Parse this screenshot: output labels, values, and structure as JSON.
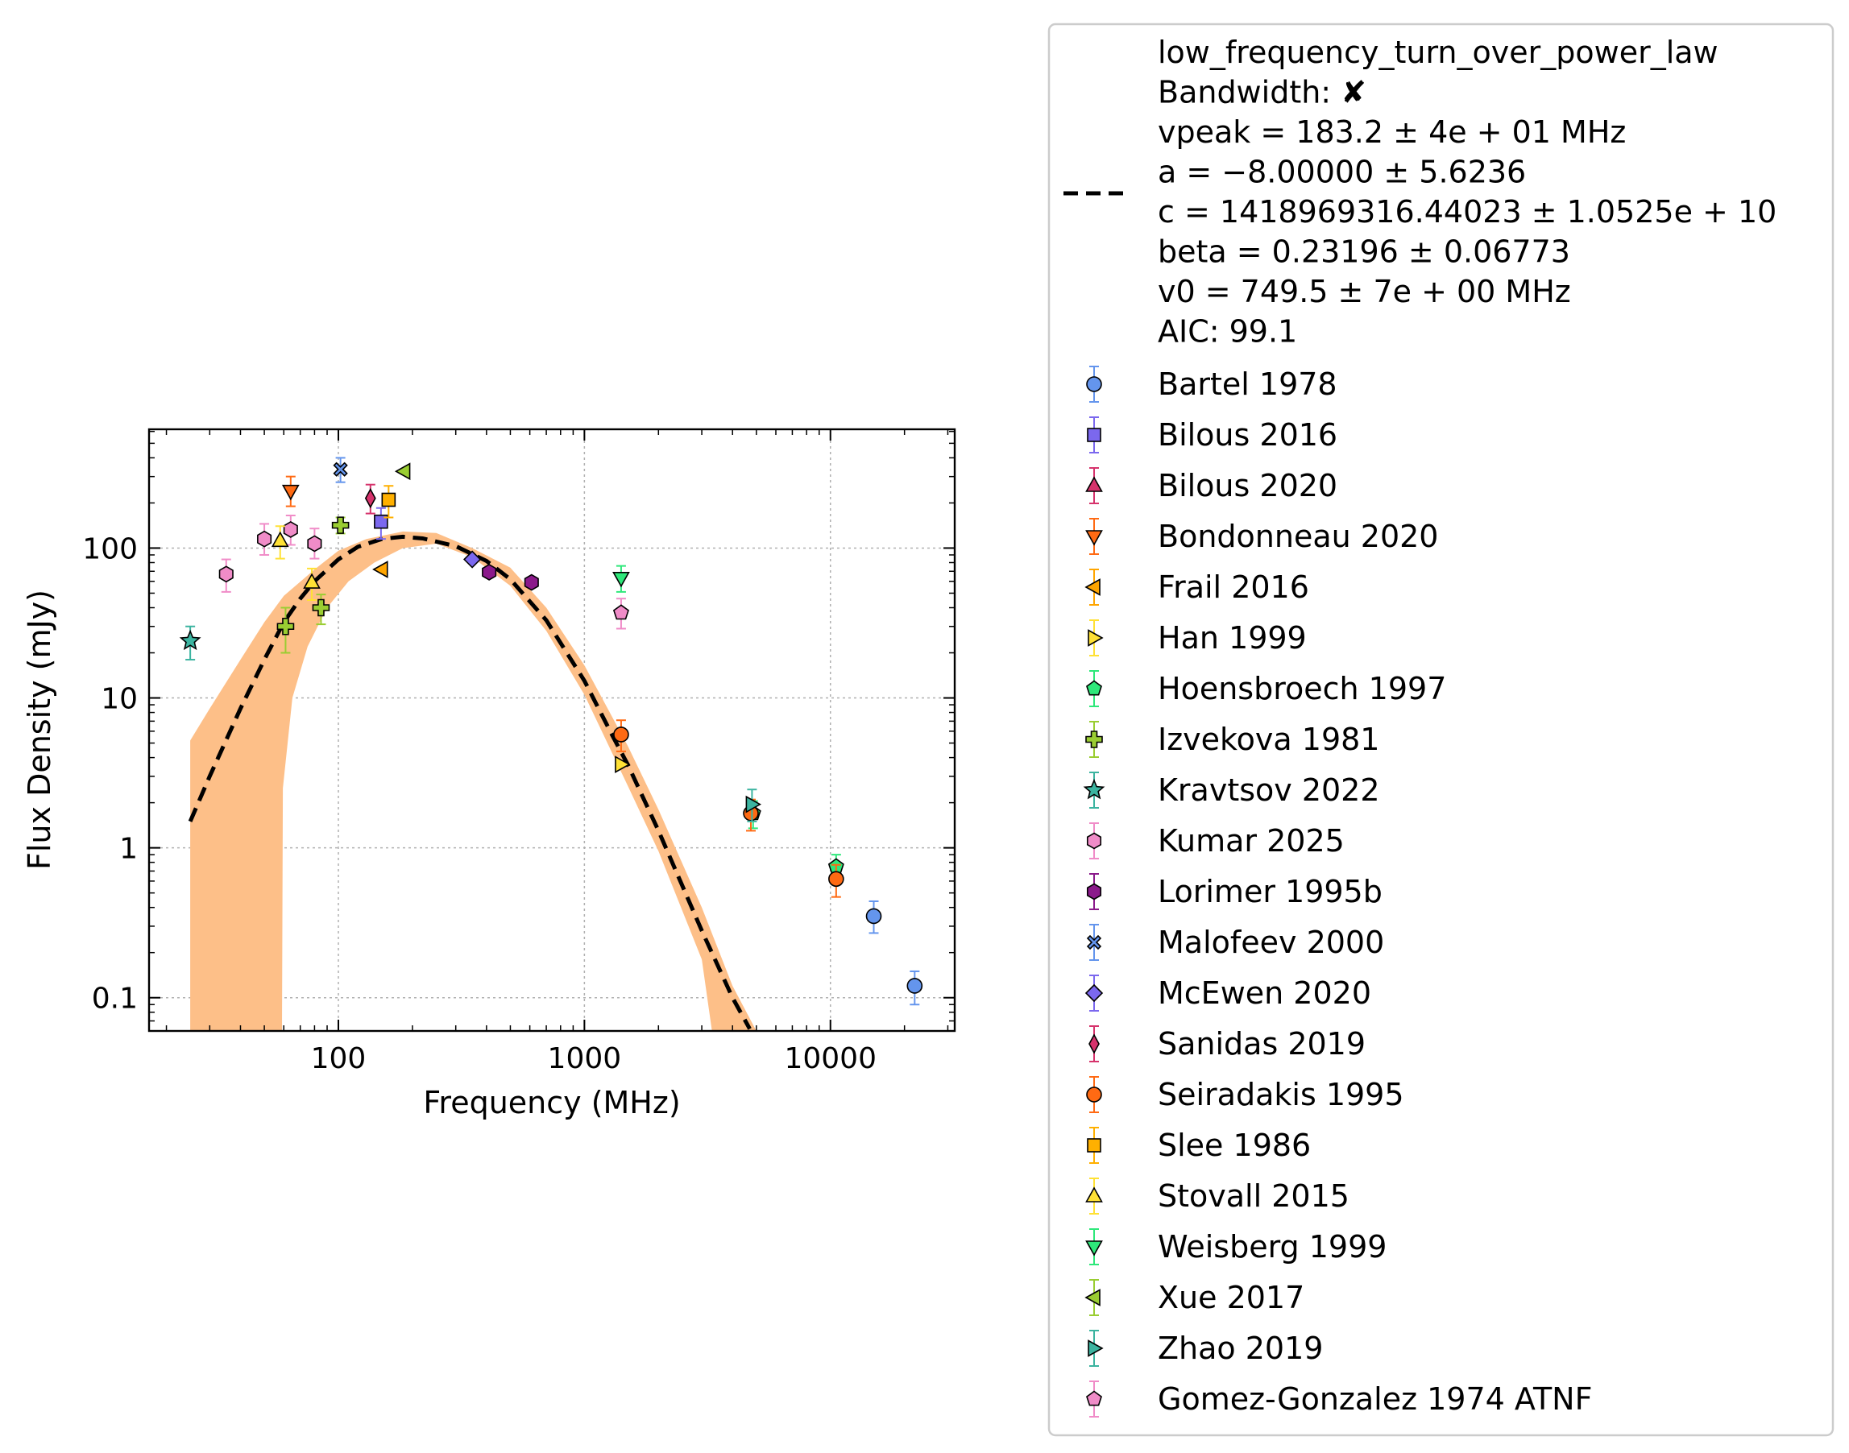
{
  "chart_data": {
    "type": "scatter",
    "title": "",
    "xlabel": "Frequency (MHz)",
    "ylabel": "Flux Density (mJy)",
    "xscale": "log",
    "yscale": "log",
    "xlim": [
      17,
      32000
    ],
    "ylim": [
      0.06,
      620
    ],
    "x_ticks": [
      100,
      1000,
      10000
    ],
    "x_tick_labels": [
      "100",
      "1000",
      "10000"
    ],
    "y_ticks": [
      0.1,
      1,
      10,
      100
    ],
    "y_tick_labels": [
      "0.1",
      "1",
      "10",
      "100"
    ],
    "grid": true,
    "legend_placement": "outside-right",
    "fit": {
      "name": "low_frequency_turn_over_power_law",
      "lines": [
        "low_frequency_turn_over_power_law",
        "Bandwidth: ✘",
        "vpeak = 183.2 ± 4e + 01 MHz",
        "a = −8.00000 ± 5.6236",
        "c = 1418969316.44023 ± 1.0525e + 10",
        "beta = 0.23196 ± 0.06773",
        "v0 = 749.5 ± 7e + 00 MHz",
        "AIC: 99.1"
      ],
      "line_color": "#000000",
      "band_color": "#fdbf88",
      "curve": [
        [
          25,
          1.5
        ],
        [
          30,
          3.0
        ],
        [
          40,
          8.5
        ],
        [
          50,
          18
        ],
        [
          60,
          32
        ],
        [
          70,
          46
        ],
        [
          80,
          60
        ],
        [
          100,
          84
        ],
        [
          120,
          102
        ],
        [
          150,
          115
        ],
        [
          183,
          119
        ],
        [
          220,
          116
        ],
        [
          300,
          103
        ],
        [
          400,
          82
        ],
        [
          500,
          62
        ],
        [
          700,
          33
        ],
        [
          1000,
          13
        ],
        [
          1300,
          5.6
        ],
        [
          1500,
          3.6
        ],
        [
          2000,
          1.3
        ],
        [
          3000,
          0.28
        ],
        [
          4000,
          0.1
        ],
        [
          4700,
          0.062
        ]
      ],
      "band_upper": [
        [
          25,
          5.2
        ],
        [
          30,
          8.5
        ],
        [
          40,
          18
        ],
        [
          50,
          32
        ],
        [
          60,
          48
        ],
        [
          80,
          72
        ],
        [
          100,
          96
        ],
        [
          130,
          115
        ],
        [
          183,
          129
        ],
        [
          250,
          126
        ],
        [
          350,
          100
        ],
        [
          500,
          74
        ],
        [
          700,
          40
        ],
        [
          1000,
          16.5
        ],
        [
          1500,
          4.8
        ],
        [
          2000,
          1.8
        ],
        [
          3000,
          0.4
        ],
        [
          4000,
          0.12
        ],
        [
          5000,
          0.06
        ]
      ],
      "band_lower": [
        [
          25,
          0.06
        ],
        [
          59,
          0.06
        ],
        [
          59.5,
          2.5
        ],
        [
          65,
          10
        ],
        [
          75,
          22
        ],
        [
          90,
          40
        ],
        [
          110,
          60
        ],
        [
          140,
          80
        ],
        [
          183,
          100
        ],
        [
          250,
          107
        ],
        [
          350,
          87
        ],
        [
          500,
          56
        ],
        [
          700,
          28
        ],
        [
          1000,
          10.5
        ],
        [
          1500,
          2.6
        ],
        [
          2000,
          0.95
        ],
        [
          3000,
          0.18
        ],
        [
          3300,
          0.06
        ]
      ]
    },
    "series": [
      {
        "name": "Bartel 1978",
        "marker": "circle",
        "color": "#6495ed",
        "points": [
          {
            "x": 15000,
            "y": 0.35,
            "lo": 0.27,
            "hi": 0.44
          },
          {
            "x": 22000,
            "y": 0.12,
            "lo": 0.09,
            "hi": 0.15
          }
        ]
      },
      {
        "name": "Bilous 2016",
        "marker": "square",
        "color": "#7b68ee",
        "points": [
          {
            "x": 149,
            "y": 150,
            "lo": 115,
            "hi": 185
          }
        ]
      },
      {
        "name": "Bilous 2020",
        "marker": "triangle-up",
        "color": "#d6336c",
        "points": []
      },
      {
        "name": "Bondonneau 2020",
        "marker": "triangle-down",
        "color": "#ff6a13",
        "points": [
          {
            "x": 64,
            "y": 240,
            "lo": 190,
            "hi": 300
          }
        ]
      },
      {
        "name": "Frail 2016",
        "marker": "triangle-left",
        "color": "#ffa500",
        "points": [
          {
            "x": 150,
            "y": 72,
            "lo": 72,
            "hi": 72
          }
        ]
      },
      {
        "name": "Han 1999",
        "marker": "triangle-right",
        "color": "#ffe135",
        "points": [
          {
            "x": 1410,
            "y": 3.6,
            "lo": 3.6,
            "hi": 3.6
          }
        ]
      },
      {
        "name": "Hoensbroech 1997",
        "marker": "pentagon",
        "color": "#2ee87a",
        "points": [
          {
            "x": 10550,
            "y": 0.75,
            "lo": 0.6,
            "hi": 0.9
          },
          {
            "x": 4850,
            "y": 1.7,
            "lo": 1.35,
            "hi": 2.05
          }
        ]
      },
      {
        "name": "Izvekova 1981",
        "marker": "plus",
        "color": "#9acd32",
        "points": [
          {
            "x": 61,
            "y": 30,
            "lo": 20,
            "hi": 40
          },
          {
            "x": 85,
            "y": 40,
            "lo": 31,
            "hi": 49
          },
          {
            "x": 102,
            "y": 142,
            "lo": 125,
            "hi": 160
          }
        ]
      },
      {
        "name": "Kravtsov 2022",
        "marker": "star",
        "color": "#3cb4a0",
        "points": [
          {
            "x": 25,
            "y": 24,
            "lo": 18,
            "hi": 30
          }
        ]
      },
      {
        "name": "Kumar 2025",
        "marker": "hexagon",
        "color": "#f08cc8",
        "points": [
          {
            "x": 35,
            "y": 67,
            "lo": 51,
            "hi": 84
          },
          {
            "x": 50,
            "y": 115,
            "lo": 90,
            "hi": 145
          },
          {
            "x": 64,
            "y": 133,
            "lo": 105,
            "hi": 165
          },
          {
            "x": 80,
            "y": 107,
            "lo": 85,
            "hi": 135
          }
        ]
      },
      {
        "name": "Lorimer 1995b",
        "marker": "hexagon",
        "color": "#8b1a8b",
        "points": [
          {
            "x": 410,
            "y": 69,
            "lo": 69,
            "hi": 69
          },
          {
            "x": 610,
            "y": 59,
            "lo": 59,
            "hi": 59
          }
        ]
      },
      {
        "name": "Malofeev 2000",
        "marker": "x",
        "color": "#6495ed",
        "points": [
          {
            "x": 102,
            "y": 335,
            "lo": 275,
            "hi": 400
          }
        ]
      },
      {
        "name": "McEwen 2020",
        "marker": "diamond",
        "color": "#7b68ee",
        "points": [
          {
            "x": 350,
            "y": 84,
            "lo": 84,
            "hi": 84
          }
        ]
      },
      {
        "name": "Sanidas 2019",
        "marker": "thin-diamond",
        "color": "#d6336c",
        "points": [
          {
            "x": 135,
            "y": 215,
            "lo": 170,
            "hi": 265
          }
        ]
      },
      {
        "name": "Seiradakis 1995",
        "marker": "circle",
        "color": "#ff6a13",
        "points": [
          {
            "x": 1410,
            "y": 5.7,
            "lo": 4.4,
            "hi": 7.1
          },
          {
            "x": 4750,
            "y": 1.7,
            "lo": 1.3,
            "hi": 2.1
          },
          {
            "x": 10550,
            "y": 0.62,
            "lo": 0.47,
            "hi": 0.77
          }
        ]
      },
      {
        "name": "Slee 1986",
        "marker": "square",
        "color": "#ffb000",
        "points": [
          {
            "x": 160,
            "y": 210,
            "lo": 160,
            "hi": 260
          }
        ]
      },
      {
        "name": "Stovall 2015",
        "marker": "triangle-up",
        "color": "#ffe135",
        "points": [
          {
            "x": 58,
            "y": 112,
            "lo": 85,
            "hi": 140
          },
          {
            "x": 78,
            "y": 59,
            "lo": 45,
            "hi": 73
          }
        ]
      },
      {
        "name": "Weisberg 1999",
        "marker": "triangle-down",
        "color": "#2ee87a",
        "points": [
          {
            "x": 1410,
            "y": 63,
            "lo": 51,
            "hi": 76
          }
        ]
      },
      {
        "name": "Xue 2017",
        "marker": "triangle-left",
        "color": "#9acd32",
        "points": [
          {
            "x": 185,
            "y": 325,
            "lo": 325,
            "hi": 325
          }
        ]
      },
      {
        "name": "Zhao 2019",
        "marker": "triangle-right",
        "color": "#3cb4a0",
        "points": [
          {
            "x": 4800,
            "y": 1.95,
            "lo": 1.5,
            "hi": 2.45
          }
        ]
      },
      {
        "name": "Gomez-Gonzalez 1974 ATNF",
        "marker": "pentagon",
        "color": "#f08cc8",
        "points": [
          {
            "x": 1410,
            "y": 37,
            "lo": 29,
            "hi": 46
          }
        ]
      }
    ]
  }
}
